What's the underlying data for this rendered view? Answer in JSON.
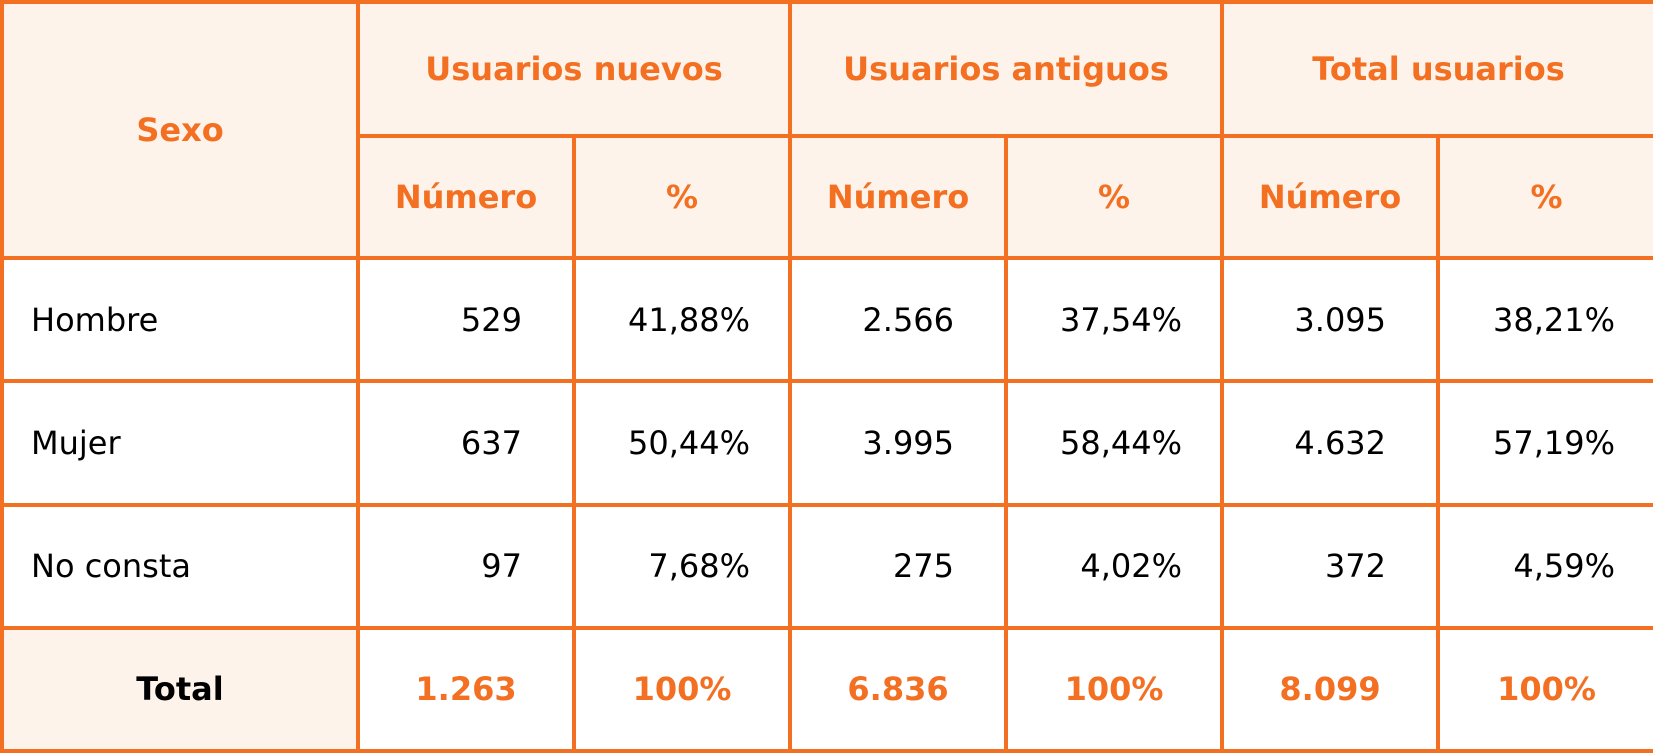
{
  "header": {
    "sexo": "Sexo",
    "groups": [
      "Usuarios nuevos",
      "Usuarios antiguos",
      "Total usuarios"
    ],
    "subheaders": [
      "Número",
      "%",
      "Número",
      "%",
      "Número",
      "%"
    ]
  },
  "rows": [
    {
      "label": "Hombre",
      "values": [
        "529",
        "41,88%",
        "2.566",
        "37,54%",
        "3.095",
        "38,21%"
      ]
    },
    {
      "label": "Mujer",
      "values": [
        "637",
        "50,44%",
        "3.995",
        "58,44%",
        "4.632",
        "57,19%"
      ]
    },
    {
      "label": "No consta",
      "values": [
        "97",
        "7,68%",
        "275",
        "4,02%",
        "372",
        "4,59%"
      ]
    }
  ],
  "total": {
    "label": "Total",
    "values": [
      "1.263",
      "100%",
      "6.836",
      "100%",
      "8.099",
      "100%"
    ]
  },
  "colors": {
    "accent": "#f36f21",
    "header_bg": "#fef3ea"
  }
}
